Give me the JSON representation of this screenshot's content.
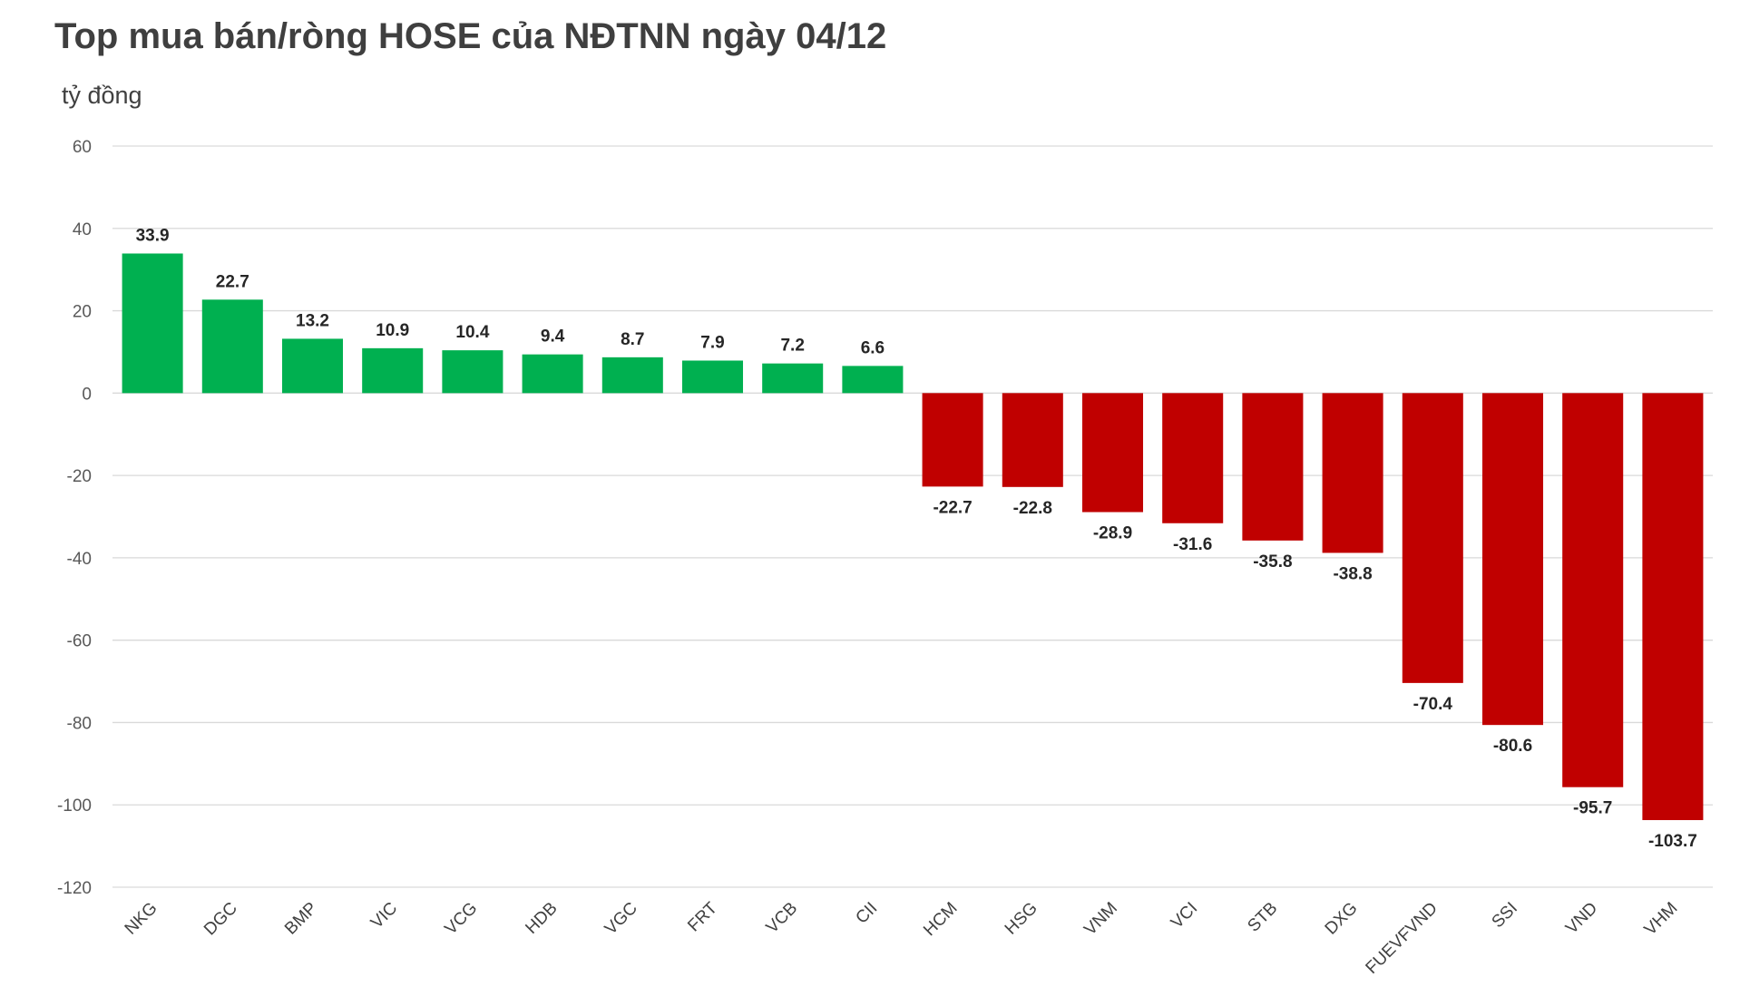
{
  "title": "Top mua bán/ròng HOSE của NĐTNN ngày 04/12",
  "unit": "tỷ đồng",
  "colors": {
    "positive": "#00b050",
    "negative": "#c00000",
    "grid": "#d9d9d9"
  },
  "chart_data": {
    "type": "bar",
    "title": "Top mua bán/ròng HOSE của NĐTNN ngày 04/12",
    "ylabel": "tỷ đồng",
    "ylim": [
      -120,
      60
    ],
    "yticks": [
      60,
      40,
      20,
      0,
      -20,
      -40,
      -60,
      -80,
      -100,
      -120
    ],
    "grid": true,
    "legend": "none",
    "categories": [
      "NKG",
      "DGC",
      "BMP",
      "VIC",
      "VCG",
      "HDB",
      "VGC",
      "FRT",
      "VCB",
      "CII",
      "HCM",
      "HSG",
      "VNM",
      "VCI",
      "STB",
      "DXG",
      "FUEVFVND",
      "SSI",
      "VND",
      "VHM"
    ],
    "values": [
      33.9,
      22.7,
      13.2,
      10.9,
      10.4,
      9.4,
      8.7,
      7.9,
      7.2,
      6.6,
      -22.7,
      -22.8,
      -28.9,
      -31.6,
      -35.8,
      -38.8,
      -70.4,
      -80.6,
      -95.7,
      -103.7
    ],
    "labels": [
      "33.9",
      "22.7",
      "13.2",
      "10.9",
      "10.4",
      "9.4",
      "8.7",
      "7.9",
      "7.2",
      "6.6",
      "-22.7",
      "-22.8",
      "-28.9",
      "-31.6",
      "-35.8",
      "-38.8",
      "-70.4",
      "-80.6",
      "-95.7",
      "-103.7"
    ]
  }
}
